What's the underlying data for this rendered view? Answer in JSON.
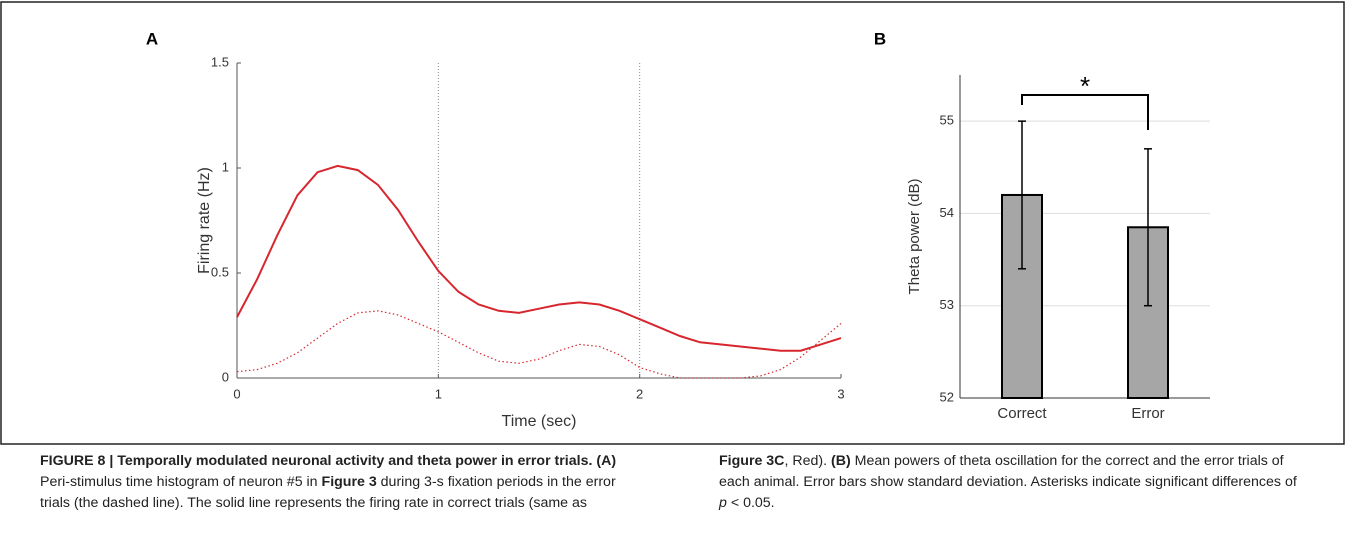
{
  "chart_data": [
    {
      "type": "line",
      "panel": "A",
      "xlabel": "Time (sec)",
      "ylabel": "Firing rate (Hz)",
      "x": [
        0,
        0.1,
        0.2,
        0.3,
        0.4,
        0.5,
        0.6,
        0.7,
        0.8,
        0.9,
        1.0,
        1.1,
        1.2,
        1.3,
        1.4,
        1.5,
        1.6,
        1.7,
        1.8,
        1.9,
        2.0,
        2.1,
        2.2,
        2.3,
        2.4,
        2.5,
        2.6,
        2.7,
        2.8,
        2.9,
        3.0
      ],
      "series": [
        {
          "color": "#d7262e",
          "dash": false,
          "values": [
            0.29,
            0.47,
            0.68,
            0.87,
            0.98,
            1.01,
            0.99,
            0.92,
            0.8,
            0.65,
            0.51,
            0.41,
            0.35,
            0.32,
            0.31,
            0.33,
            0.35,
            0.36,
            0.35,
            0.32,
            0.28,
            0.24,
            0.2,
            0.17,
            0.16,
            0.15,
            0.14,
            0.13,
            0.13,
            0.16,
            0.19
          ]
        },
        {
          "color": "#d7262e",
          "dash": true,
          "values": [
            0.03,
            0.04,
            0.07,
            0.12,
            0.19,
            0.26,
            0.31,
            0.32,
            0.3,
            0.26,
            0.22,
            0.17,
            0.12,
            0.08,
            0.07,
            0.09,
            0.13,
            0.16,
            0.15,
            0.11,
            0.05,
            0.02,
            0.0,
            0.0,
            0.0,
            0.0,
            0.01,
            0.04,
            0.1,
            0.18,
            0.26
          ]
        }
      ],
      "vlines": [
        1,
        2
      ],
      "xlim": [
        0,
        3
      ],
      "xticks": [
        0,
        1,
        2,
        3
      ],
      "ylim": [
        0,
        1.5
      ],
      "yticks": [
        0,
        0.5,
        1,
        1.5
      ]
    },
    {
      "type": "bar",
      "panel": "B",
      "ylabel": "Theta power (dB)",
      "annotation": "*",
      "categories": [
        "Correct",
        "Error"
      ],
      "values": [
        54.2,
        53.85
      ],
      "errors": [
        0.8,
        0.85
      ],
      "color": "#a6a6a6",
      "ylim": [
        52,
        55.5
      ],
      "yticks": [
        52,
        53,
        54,
        55
      ],
      "grid": true
    }
  ],
  "caption": [
    {
      "text": "FIGURE 8 | Temporally modulated neuronal activity and theta power in error trials.",
      "style": "b"
    },
    {
      "text": "(A)",
      "style": "b"
    },
    {
      "text": "Peri-stimulus time histogram of neuron #5 in"
    },
    {
      "text": "Figure 3",
      "style": "b"
    },
    {
      "text": "during 3-s fixation periods in the error trials (the dashed line). The solid line represents the firing rate in correct trials (same as"
    },
    {
      "text": "Figure 3C",
      "style": "b"
    },
    {
      "text": ", Red)."
    },
    {
      "text": "(B)",
      "style": "b"
    },
    {
      "text": "Mean powers of theta oscillation for the correct and the error trials of each animal. Error bars show standard deviation. Asterisks indicate significant differences of"
    },
    {
      "text": "p",
      "style": "i"
    },
    {
      "text": "< 0.05."
    }
  ]
}
